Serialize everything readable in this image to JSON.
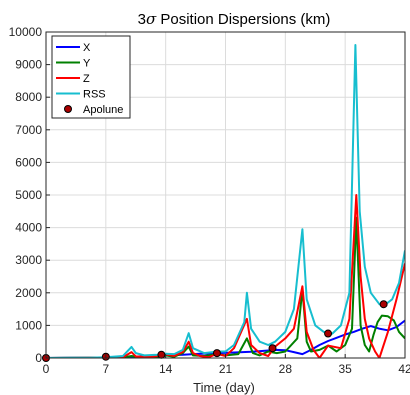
{
  "chart_data": {
    "type": "line",
    "title_prefix": "3",
    "title_symbol": "σ",
    "title_suffix": " Position Dispersions (km)",
    "xlabel": "Time (day)",
    "ylabel": "",
    "xlim": [
      0,
      42
    ],
    "ylim": [
      0,
      10000
    ],
    "xticks": [
      0,
      7,
      14,
      21,
      28,
      35,
      42
    ],
    "yticks": [
      0,
      1000,
      2000,
      3000,
      4000,
      5000,
      6000,
      7000,
      8000,
      9000,
      10000
    ],
    "grid": true,
    "legend_position": "top-left",
    "series": [
      {
        "name": "X",
        "color": "#0000ff",
        "points": [
          [
            0,
            0
          ],
          [
            3,
            5
          ],
          [
            6,
            12
          ],
          [
            8,
            25
          ],
          [
            10,
            40
          ],
          [
            12,
            60
          ],
          [
            14,
            80
          ],
          [
            16,
            100
          ],
          [
            18,
            130
          ],
          [
            20,
            150
          ],
          [
            22,
            170
          ],
          [
            24,
            190
          ],
          [
            26,
            230
          ],
          [
            27,
            250
          ],
          [
            28,
            240
          ],
          [
            29,
            180
          ],
          [
            30,
            120
          ],
          [
            31,
            250
          ],
          [
            32,
            400
          ],
          [
            33,
            520
          ],
          [
            34,
            620
          ],
          [
            35,
            720
          ],
          [
            36,
            800
          ],
          [
            37,
            900
          ],
          [
            38,
            980
          ],
          [
            39,
            900
          ],
          [
            40,
            850
          ],
          [
            41,
            950
          ],
          [
            42,
            1150
          ]
        ]
      },
      {
        "name": "Y",
        "color": "#008000",
        "points": [
          [
            0,
            0
          ],
          [
            5,
            5
          ],
          [
            9,
            15
          ],
          [
            10,
            60
          ],
          [
            11,
            20
          ],
          [
            13,
            30
          ],
          [
            14,
            80
          ],
          [
            15,
            40
          ],
          [
            16,
            150
          ],
          [
            16.7,
            350
          ],
          [
            17.2,
            80
          ],
          [
            18.5,
            60
          ],
          [
            20,
            120
          ],
          [
            21,
            80
          ],
          [
            22.5,
            120
          ],
          [
            23.5,
            600
          ],
          [
            24.2,
            150
          ],
          [
            25,
            80
          ],
          [
            26,
            200
          ],
          [
            27,
            150
          ],
          [
            28,
            200
          ],
          [
            29.4,
            600
          ],
          [
            30,
            2100
          ],
          [
            30.5,
            500
          ],
          [
            31,
            200
          ],
          [
            32,
            250
          ],
          [
            33,
            380
          ],
          [
            34,
            200
          ],
          [
            35,
            400
          ],
          [
            35.8,
            900
          ],
          [
            36.3,
            4300
          ],
          [
            36.8,
            1000
          ],
          [
            37.3,
            400
          ],
          [
            37.8,
            200
          ],
          [
            38.3,
            700
          ],
          [
            38.8,
            1100
          ],
          [
            39.3,
            1300
          ],
          [
            40,
            1280
          ],
          [
            40.7,
            1150
          ],
          [
            41.3,
            800
          ],
          [
            42,
            600
          ]
        ]
      },
      {
        "name": "Z",
        "color": "#ff0000",
        "points": [
          [
            0,
            0
          ],
          [
            5,
            5
          ],
          [
            7,
            15
          ],
          [
            9,
            20
          ],
          [
            10,
            180
          ],
          [
            10.5,
            50
          ],
          [
            12,
            30
          ],
          [
            13,
            60
          ],
          [
            14,
            110
          ],
          [
            15,
            60
          ],
          [
            16,
            180
          ],
          [
            16.7,
            500
          ],
          [
            17.2,
            150
          ],
          [
            18,
            60
          ],
          [
            19,
            20
          ],
          [
            20,
            130
          ],
          [
            21,
            60
          ],
          [
            22,
            300
          ],
          [
            23.5,
            1200
          ],
          [
            24,
            400
          ],
          [
            25,
            150
          ],
          [
            26,
            60
          ],
          [
            26.8,
            350
          ],
          [
            28,
            600
          ],
          [
            29,
            900
          ],
          [
            30,
            2200
          ],
          [
            30.5,
            800
          ],
          [
            31.3,
            250
          ],
          [
            32,
            0
          ],
          [
            33,
            380
          ],
          [
            34.5,
            300
          ],
          [
            35.5,
            1200
          ],
          [
            36.3,
            5000
          ],
          [
            36.8,
            2500
          ],
          [
            37.3,
            1200
          ],
          [
            37.8,
            600
          ],
          [
            38.5,
            200
          ],
          [
            39,
            0
          ],
          [
            40,
            800
          ],
          [
            41,
            1800
          ],
          [
            42,
            2900
          ]
        ]
      },
      {
        "name": "RSS",
        "color": "#17becf",
        "points": [
          [
            0,
            0
          ],
          [
            3,
            5
          ],
          [
            5,
            10
          ],
          [
            7,
            20
          ],
          [
            9,
            60
          ],
          [
            10,
            340
          ],
          [
            10.5,
            150
          ],
          [
            11.5,
            80
          ],
          [
            13,
            100
          ],
          [
            14,
            130
          ],
          [
            15,
            120
          ],
          [
            16,
            250
          ],
          [
            16.7,
            760
          ],
          [
            17.2,
            300
          ],
          [
            18.5,
            150
          ],
          [
            19.5,
            180
          ],
          [
            20,
            200
          ],
          [
            21,
            200
          ],
          [
            22,
            400
          ],
          [
            23.2,
            1100
          ],
          [
            23.5,
            2000
          ],
          [
            24,
            900
          ],
          [
            25,
            500
          ],
          [
            26,
            400
          ],
          [
            26.8,
            500
          ],
          [
            28,
            800
          ],
          [
            29,
            1500
          ],
          [
            30,
            3950
          ],
          [
            30.5,
            1800
          ],
          [
            31.5,
            1000
          ],
          [
            32.5,
            800
          ],
          [
            33.5,
            750
          ],
          [
            34.5,
            1000
          ],
          [
            35.5,
            2000
          ],
          [
            36.2,
            9600
          ],
          [
            36.7,
            4500
          ],
          [
            37.3,
            2800
          ],
          [
            38,
            2000
          ],
          [
            39,
            1650
          ],
          [
            39.5,
            1600
          ],
          [
            40.5,
            1800
          ],
          [
            41.3,
            2300
          ],
          [
            42,
            3300
          ]
        ]
      }
    ],
    "markers": {
      "name": "Apolune",
      "color": "#aa0000",
      "edge": "#000000",
      "points": [
        [
          0,
          0
        ],
        [
          7,
          40
        ],
        [
          13.5,
          100
        ],
        [
          20,
          150
        ],
        [
          26.5,
          300
        ],
        [
          33,
          750
        ],
        [
          39.5,
          1650
        ]
      ]
    }
  }
}
